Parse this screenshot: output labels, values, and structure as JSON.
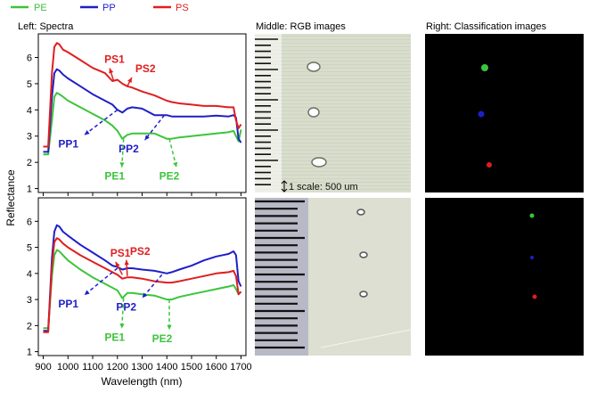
{
  "figure": {
    "panel_titles": {
      "left": "Left: Spectra",
      "middle": "Middle: RGB images",
      "right": "Right: Classification images"
    },
    "scale_label": "1 scale: 500 um"
  },
  "colors": {
    "PE": "#3cc43c",
    "PP": "#1f1fc8",
    "PS": "#e01e1e"
  },
  "chart_data": [
    {
      "type": "line",
      "panel": "top",
      "xlabel": "Wavelength (nm)",
      "ylabel": "Reflectance",
      "xlim": [
        880,
        1720
      ],
      "ylim": [
        0.85,
        6.9
      ],
      "xticks": [
        "900",
        "1000",
        "1100",
        "1200",
        "1300",
        "1400",
        "1500",
        "1600",
        "1700"
      ],
      "yticks": [
        "1",
        "2",
        "3",
        "4",
        "5",
        "6"
      ],
      "grid": false,
      "legend": "top",
      "series": [
        {
          "name": "PE",
          "color": "#3cc43c",
          "x": [
            900,
            920,
            935,
            945,
            955,
            965,
            980,
            1000,
            1050,
            1100,
            1150,
            1180,
            1200,
            1220,
            1240,
            1260,
            1300,
            1350,
            1400,
            1420,
            1450,
            1500,
            1550,
            1600,
            1650,
            1670,
            1680,
            1690,
            1700
          ],
          "y": [
            2.3,
            2.3,
            3.6,
            4.5,
            4.65,
            4.6,
            4.5,
            4.35,
            4.1,
            3.85,
            3.6,
            3.4,
            3.2,
            2.9,
            3.05,
            3.1,
            3.1,
            3.1,
            2.9,
            2.9,
            2.95,
            3.0,
            3.05,
            3.1,
            3.15,
            3.2,
            3.0,
            2.8,
            3.25
          ]
        },
        {
          "name": "PP",
          "color": "#1f1fc8",
          "x": [
            900,
            920,
            935,
            945,
            955,
            965,
            980,
            1000,
            1050,
            1100,
            1150,
            1180,
            1200,
            1220,
            1240,
            1260,
            1300,
            1350,
            1400,
            1420,
            1450,
            1500,
            1550,
            1600,
            1650,
            1670,
            1680,
            1690,
            1700
          ],
          "y": [
            2.4,
            2.4,
            4.5,
            5.4,
            5.55,
            5.5,
            5.35,
            5.2,
            4.9,
            4.6,
            4.35,
            4.2,
            4.0,
            3.9,
            4.05,
            4.1,
            4.05,
            3.8,
            3.8,
            3.75,
            3.75,
            3.75,
            3.75,
            3.78,
            3.75,
            3.8,
            3.7,
            2.9,
            2.75
          ]
        },
        {
          "name": "PS",
          "color": "#e01e1e",
          "x": [
            900,
            920,
            935,
            945,
            955,
            965,
            980,
            1000,
            1050,
            1100,
            1150,
            1180,
            1200,
            1220,
            1240,
            1260,
            1300,
            1350,
            1400,
            1420,
            1450,
            1500,
            1550,
            1600,
            1650,
            1670,
            1680,
            1690,
            1700
          ],
          "y": [
            2.6,
            2.6,
            5.4,
            6.4,
            6.55,
            6.5,
            6.3,
            6.2,
            5.9,
            5.6,
            5.4,
            5.1,
            5.15,
            5.0,
            4.9,
            4.85,
            4.7,
            4.55,
            4.35,
            4.3,
            4.25,
            4.2,
            4.15,
            4.15,
            4.1,
            4.1,
            3.6,
            3.3,
            3.45
          ]
        }
      ],
      "annotations": [
        {
          "text": "PS1",
          "series": "PS",
          "style": "solid",
          "x": 1185,
          "y": 5.1
        },
        {
          "text": "PS2",
          "series": "PS",
          "style": "solid",
          "x": 1240,
          "y": 4.9
        },
        {
          "text": "PP1",
          "series": "PP",
          "style": "dashed",
          "x": 1200,
          "y": 4.0
        },
        {
          "text": "PP2",
          "series": "PP",
          "style": "dashed",
          "x": 1390,
          "y": 3.8
        },
        {
          "text": "PE1",
          "series": "PE",
          "style": "dashed",
          "x": 1225,
          "y": 2.9
        },
        {
          "text": "PE2",
          "series": "PE",
          "style": "dashed",
          "x": 1410,
          "y": 2.9
        }
      ]
    },
    {
      "type": "line",
      "panel": "bottom",
      "xlabel": "Wavelength (nm)",
      "ylabel": "Reflectance",
      "xlim": [
        880,
        1720
      ],
      "ylim": [
        0.85,
        6.9
      ],
      "xticks": [
        "900",
        "1000",
        "1100",
        "1200",
        "1300",
        "1400",
        "1500",
        "1600",
        "1700"
      ],
      "yticks": [
        "1",
        "2",
        "3",
        "4",
        "5",
        "6"
      ],
      "grid": false,
      "series": [
        {
          "name": "PE",
          "color": "#3cc43c",
          "x": [
            900,
            920,
            935,
            945,
            955,
            965,
            980,
            1000,
            1050,
            1100,
            1150,
            1180,
            1200,
            1220,
            1240,
            1260,
            1300,
            1350,
            1400,
            1420,
            1450,
            1500,
            1550,
            1600,
            1650,
            1670,
            1680,
            1690,
            1700
          ],
          "y": [
            1.9,
            1.9,
            3.9,
            4.7,
            4.9,
            4.85,
            4.7,
            4.5,
            4.15,
            3.85,
            3.6,
            3.45,
            3.35,
            3.05,
            3.25,
            3.25,
            3.2,
            3.15,
            3.0,
            3.0,
            3.1,
            3.2,
            3.3,
            3.4,
            3.5,
            3.55,
            3.4,
            3.2,
            3.3
          ]
        },
        {
          "name": "PP",
          "color": "#1f1fc8",
          "x": [
            900,
            920,
            935,
            945,
            955,
            965,
            980,
            1000,
            1050,
            1100,
            1150,
            1180,
            1200,
            1220,
            1240,
            1260,
            1300,
            1350,
            1400,
            1420,
            1450,
            1500,
            1550,
            1600,
            1650,
            1670,
            1680,
            1690,
            1700
          ],
          "y": [
            1.8,
            1.8,
            4.6,
            5.6,
            5.85,
            5.8,
            5.6,
            5.45,
            5.1,
            4.8,
            4.5,
            4.3,
            4.25,
            4.15,
            4.2,
            4.2,
            4.15,
            4.1,
            4.0,
            4.05,
            4.15,
            4.3,
            4.5,
            4.65,
            4.75,
            4.85,
            4.7,
            3.7,
            3.5
          ]
        },
        {
          "name": "PS",
          "color": "#e01e1e",
          "x": [
            900,
            920,
            935,
            945,
            955,
            965,
            980,
            1000,
            1050,
            1100,
            1150,
            1180,
            1200,
            1220,
            1240,
            1260,
            1300,
            1350,
            1400,
            1420,
            1450,
            1500,
            1550,
            1600,
            1650,
            1670,
            1680,
            1690,
            1700
          ],
          "y": [
            1.75,
            1.75,
            4.3,
            5.2,
            5.35,
            5.3,
            5.15,
            5.0,
            4.7,
            4.45,
            4.2,
            4.05,
            3.95,
            3.8,
            3.85,
            3.85,
            3.8,
            3.7,
            3.65,
            3.65,
            3.7,
            3.8,
            3.9,
            4.0,
            4.05,
            4.1,
            3.9,
            3.2,
            3.3
          ]
        }
      ],
      "annotations": [
        {
          "text": "PS1",
          "series": "PS",
          "style": "solid",
          "x": 1220,
          "y": 3.95
        },
        {
          "text": "PS2",
          "series": "PS",
          "style": "solid",
          "x": 1240,
          "y": 3.9
        },
        {
          "text": "PP1",
          "series": "PP",
          "style": "dashed",
          "x": 1200,
          "y": 4.2
        },
        {
          "text": "PP2",
          "series": "PP",
          "style": "dashed",
          "x": 1380,
          "y": 3.95
        },
        {
          "text": "PE1",
          "series": "PE",
          "style": "dashed",
          "x": 1225,
          "y": 3.05
        },
        {
          "text": "PE2",
          "series": "PE",
          "style": "dashed",
          "x": 1410,
          "y": 3.0
        }
      ]
    }
  ]
}
